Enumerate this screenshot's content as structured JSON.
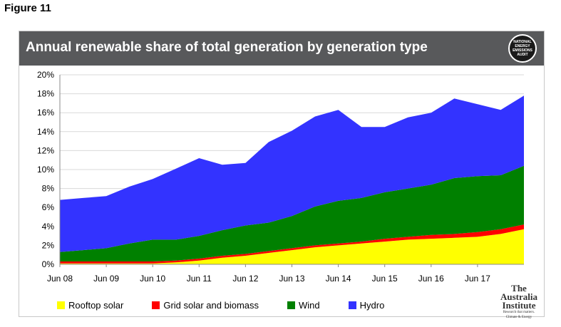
{
  "figure_label": "Figure 11",
  "badge_lines": [
    "NATIONAL",
    "ENERGY",
    "EMISSIONS",
    "AUDIT"
  ],
  "logo": {
    "line1": "The Australia",
    "line2": "Institute",
    "line3": "Research that matters.",
    "line4": "Climate & Energy"
  },
  "colors": {
    "rooftop": "#ffff00",
    "grid": "#ff0000",
    "wind": "#008000",
    "hydro": "#3333ff",
    "title_bar": "#58595b"
  },
  "chart_data": {
    "type": "area",
    "stacked": true,
    "title": "Annual renewable share of total generation by generation type",
    "ylim": [
      0,
      20
    ],
    "yticks": [
      "0%",
      "2%",
      "4%",
      "6%",
      "8%",
      "10%",
      "12%",
      "14%",
      "16%",
      "18%",
      "20%"
    ],
    "xticks": [
      "Jun 08",
      "Jun 09",
      "Jun 10",
      "Jun 11",
      "Jun 12",
      "Jun 13",
      "Jun 14",
      "Jun 15",
      "Jun 16",
      "Jun 17"
    ],
    "grid": true,
    "legend_position": "bottom",
    "x": [
      "Jun 08",
      "Dec 08",
      "Jun 09",
      "Dec 09",
      "Jun 10",
      "Dec 10",
      "Jun 11",
      "Dec 11",
      "Jun 12",
      "Dec 12",
      "Jun 13",
      "Dec 13",
      "Jun 14",
      "Dec 14",
      "Jun 15",
      "Dec 15",
      "Jun 16",
      "Dec 16",
      "Jun 17",
      "Dec 17",
      "Jun 18"
    ],
    "series": [
      {
        "name": "Rooftop solar",
        "values": [
          0.1,
          0.1,
          0.1,
          0.1,
          0.1,
          0.2,
          0.4,
          0.7,
          0.9,
          1.2,
          1.5,
          1.8,
          2.0,
          2.2,
          2.4,
          2.6,
          2.7,
          2.8,
          2.9,
          3.2,
          3.7
        ]
      },
      {
        "name": "Grid solar and biomass",
        "values": [
          0.2,
          0.2,
          0.2,
          0.2,
          0.2,
          0.2,
          0.2,
          0.2,
          0.2,
          0.2,
          0.2,
          0.2,
          0.2,
          0.2,
          0.3,
          0.3,
          0.4,
          0.4,
          0.5,
          0.5,
          0.5
        ]
      },
      {
        "name": "Wind",
        "values": [
          1.0,
          1.2,
          1.4,
          1.9,
          2.3,
          2.2,
          2.4,
          2.7,
          3.0,
          3.0,
          3.4,
          4.1,
          4.5,
          4.6,
          4.9,
          5.1,
          5.3,
          5.9,
          5.9,
          5.7,
          6.2
        ]
      },
      {
        "name": "Hydro",
        "values": [
          5.5,
          5.5,
          5.5,
          6.0,
          6.4,
          7.5,
          8.2,
          6.9,
          6.6,
          8.5,
          9.0,
          9.5,
          9.6,
          7.5,
          6.9,
          7.5,
          7.6,
          8.4,
          7.6,
          6.9,
          7.4
        ]
      }
    ]
  }
}
